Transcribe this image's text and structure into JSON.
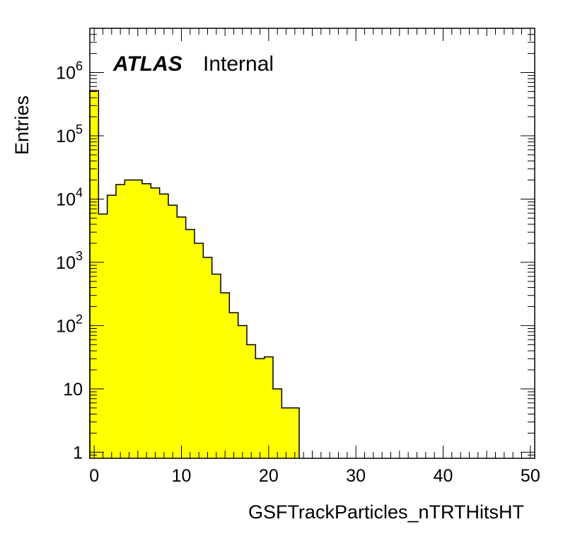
{
  "chart_data": {
    "type": "bar",
    "style": "histogram-step",
    "xlabel": "GSFTrackParticles_nTRTHitsHT",
    "ylabel": "Entries",
    "xlim": [
      -0.5,
      50.5
    ],
    "ylim": [
      0.8,
      5000000
    ],
    "yscale": "log",
    "bin_width": 1,
    "x_ticks": [
      0,
      10,
      20,
      30,
      40,
      50
    ],
    "x_tick_labels": [
      "0",
      "10",
      "20",
      "30",
      "40",
      "50"
    ],
    "y_ticks": [
      {
        "value": 1,
        "base": "1",
        "exp": ""
      },
      {
        "value": 10,
        "base": "10",
        "exp": ""
      },
      {
        "value": 100,
        "base": "10",
        "exp": "2"
      },
      {
        "value": 1000,
        "base": "10",
        "exp": "3"
      },
      {
        "value": 10000,
        "base": "10",
        "exp": "4"
      },
      {
        "value": 100000,
        "base": "10",
        "exp": "5"
      },
      {
        "value": 1000000,
        "base": "10",
        "exp": "6"
      }
    ],
    "bin_centers": [
      0,
      1,
      2,
      3,
      4,
      5,
      6,
      7,
      8,
      9,
      10,
      11,
      12,
      13,
      14,
      15,
      16,
      17,
      18,
      19,
      20,
      21,
      22,
      23
    ],
    "values": [
      520000,
      5800,
      11500,
      17000,
      20000,
      20000,
      17500,
      15000,
      12000,
      8000,
      5200,
      3300,
      2000,
      1200,
      650,
      330,
      160,
      100,
      50,
      30,
      32,
      10,
      5,
      5
    ],
    "fill_color": "#ffff00",
    "line_color": "#000000",
    "annotation": {
      "bold": "ATLAS",
      "normal": "Internal"
    },
    "grid": false,
    "legend": "none"
  }
}
